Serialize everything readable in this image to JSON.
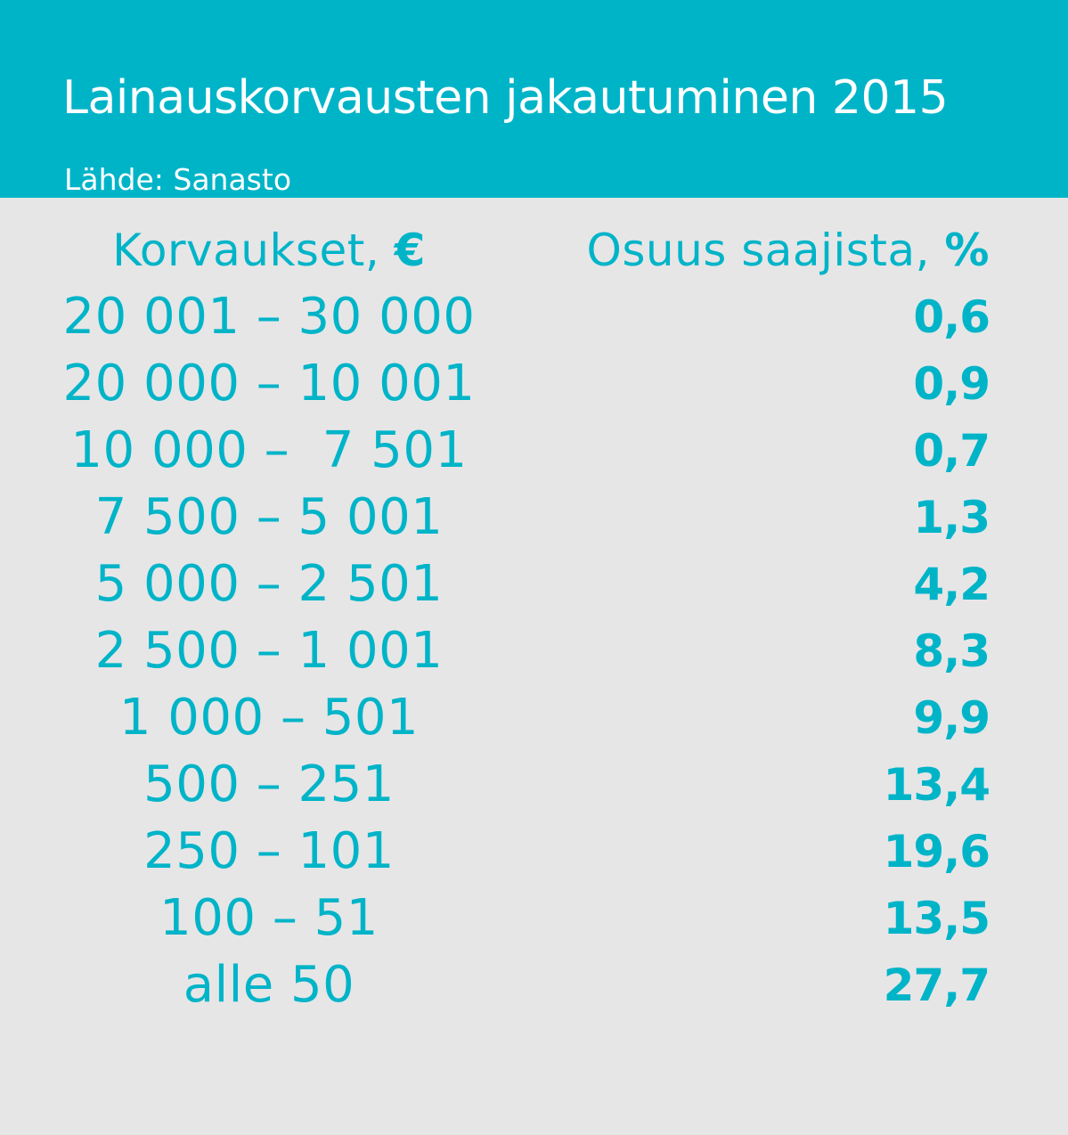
{
  "title": "Lainauskorvausten jakautuminen 2015",
  "subtitle": "Lähde: Sanasto",
  "chart_data": {
    "type": "table",
    "columns": [
      {
        "label": "Korvaukset, ",
        "unit": "€"
      },
      {
        "label": "Osuus saajista, ",
        "unit": "%"
      }
    ],
    "rows": [
      {
        "range": "20 001 – 30 000",
        "value": "0,6"
      },
      {
        "range": "20 000 – 10 001",
        "value": "0,9"
      },
      {
        "range": "10 000 –  7 501",
        "value": "0,7"
      },
      {
        "range": "7 500 – 5 001",
        "value": "1,3"
      },
      {
        "range": "5 000 – 2 501",
        "value": "4,2"
      },
      {
        "range": "2 500 – 1 001",
        "value": "8,3"
      },
      {
        "range": "1 000 – 501",
        "value": "9,9"
      },
      {
        "range": "500 – 251",
        "value": "13,4"
      },
      {
        "range": "250 – 101",
        "value": "19,6"
      },
      {
        "range": "100 – 51",
        "value": "13,5"
      },
      {
        "range": "alle 50",
        "value": "27,7"
      }
    ]
  },
  "colors": {
    "accent": "#00b4c8",
    "background": "#e6e6e7",
    "header_text": "#ffffff"
  }
}
